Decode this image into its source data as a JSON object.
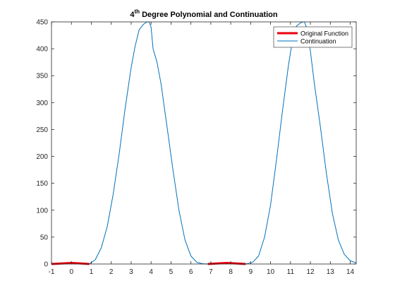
{
  "chart_data": {
    "type": "line",
    "title": {
      "base": "4",
      "sup": "th",
      "rest": " Degree Polynomial and Continuation"
    },
    "xlim": [
      -1,
      14.3
    ],
    "ylim": [
      0,
      450
    ],
    "xticks": [
      -1,
      0,
      1,
      2,
      3,
      4,
      5,
      6,
      7,
      8,
      9,
      10,
      11,
      12,
      13,
      14
    ],
    "yticks": [
      0,
      50,
      100,
      150,
      200,
      250,
      300,
      350,
      400,
      450
    ],
    "grid": false,
    "legend_position": "top-right",
    "series": [
      {
        "name": "Original Function",
        "color": "#e8000b",
        "style": "thick",
        "segments": [
          {
            "x": [
              -1,
              -0.5,
              0,
              0.5,
              0.9
            ],
            "y": [
              0,
              1,
              2,
              1,
              0
            ]
          },
          {
            "x": [
              6.85,
              7.3,
              7.8,
              8.3,
              8.75
            ],
            "y": [
              0,
              1,
              2,
              1,
              0
            ]
          }
        ]
      },
      {
        "name": "Continuation",
        "color": "#0072bd",
        "style": "thin",
        "segments": [
          {
            "x": [
              -1,
              -0.5,
              0,
              0.5,
              0.9,
              1.2,
              1.5,
              1.8,
              2.1,
              2.4,
              2.7,
              3.0,
              3.2,
              3.4,
              3.6,
              3.8,
              3.9,
              4.0,
              4.1,
              4.3,
              4.5,
              4.8,
              5.1,
              5.4,
              5.7,
              6.0,
              6.3,
              6.6,
              6.85,
              7.3,
              7.8,
              8.3,
              8.75,
              9.1,
              9.4,
              9.7,
              10.0,
              10.3,
              10.6,
              10.9,
              11.1,
              11.3,
              11.5,
              11.6,
              11.7,
              11.8,
              12.0,
              12.2,
              12.5,
              12.8,
              13.1,
              13.4,
              13.7,
              14.0,
              14.3
            ],
            "y": [
              0,
              1,
              2,
              1,
              0,
              8,
              30,
              70,
              130,
              205,
              290,
              365,
              405,
              435,
              445,
              452,
              455,
              440,
              400,
              375,
              335,
              255,
              175,
              100,
              45,
              15,
              3,
              0.5,
              0,
              1,
              2,
              1,
              0,
              3,
              15,
              50,
              110,
              195,
              285,
              370,
              415,
              442,
              448,
              452,
              455,
              440,
              395,
              335,
              255,
              170,
              95,
              45,
              18,
              6,
              2
            ]
          }
        ]
      }
    ]
  }
}
